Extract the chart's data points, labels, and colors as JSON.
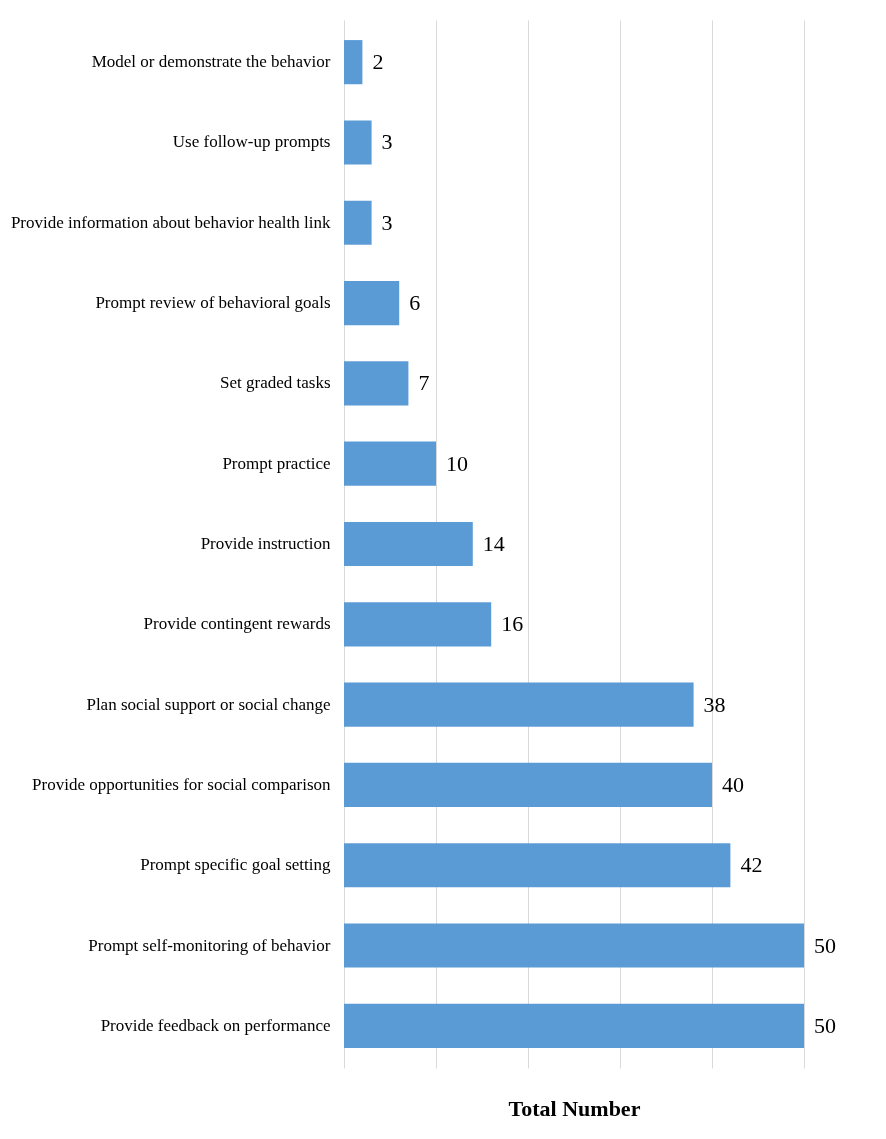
{
  "chart_data": {
    "type": "bar",
    "orientation": "horizontal",
    "xlabel": "Total Number",
    "categories": [
      "Model or demonstrate the behavior",
      "Use follow-up prompts",
      "Provide information about behavior health link",
      "Prompt review of behavioral goals",
      "Set graded tasks",
      "Prompt practice ",
      "Provide instruction",
      "Provide contingent rewards",
      "Plan social support or social change",
      "Provide opportunities for social comparison",
      "Prompt specific goal setting",
      "Prompt self-monitoring of behavior",
      "Provide feedback on performance"
    ],
    "values": [
      2,
      3,
      3,
      6,
      7,
      10,
      14,
      16,
      38,
      40,
      42,
      50,
      50
    ],
    "color": "#5b9bd5",
    "xlim": [
      0,
      50
    ],
    "xticks": [
      {
        "value": 0,
        "label": null
      },
      {
        "value": 10,
        "label": null
      },
      {
        "value": 20,
        "label": null
      },
      {
        "value": 30,
        "label": null
      },
      {
        "value": 40,
        "label": null
      },
      {
        "value": 50,
        "label": null
      }
    ],
    "grid": "x",
    "tick_labels": "y",
    "data_labels": true
  }
}
